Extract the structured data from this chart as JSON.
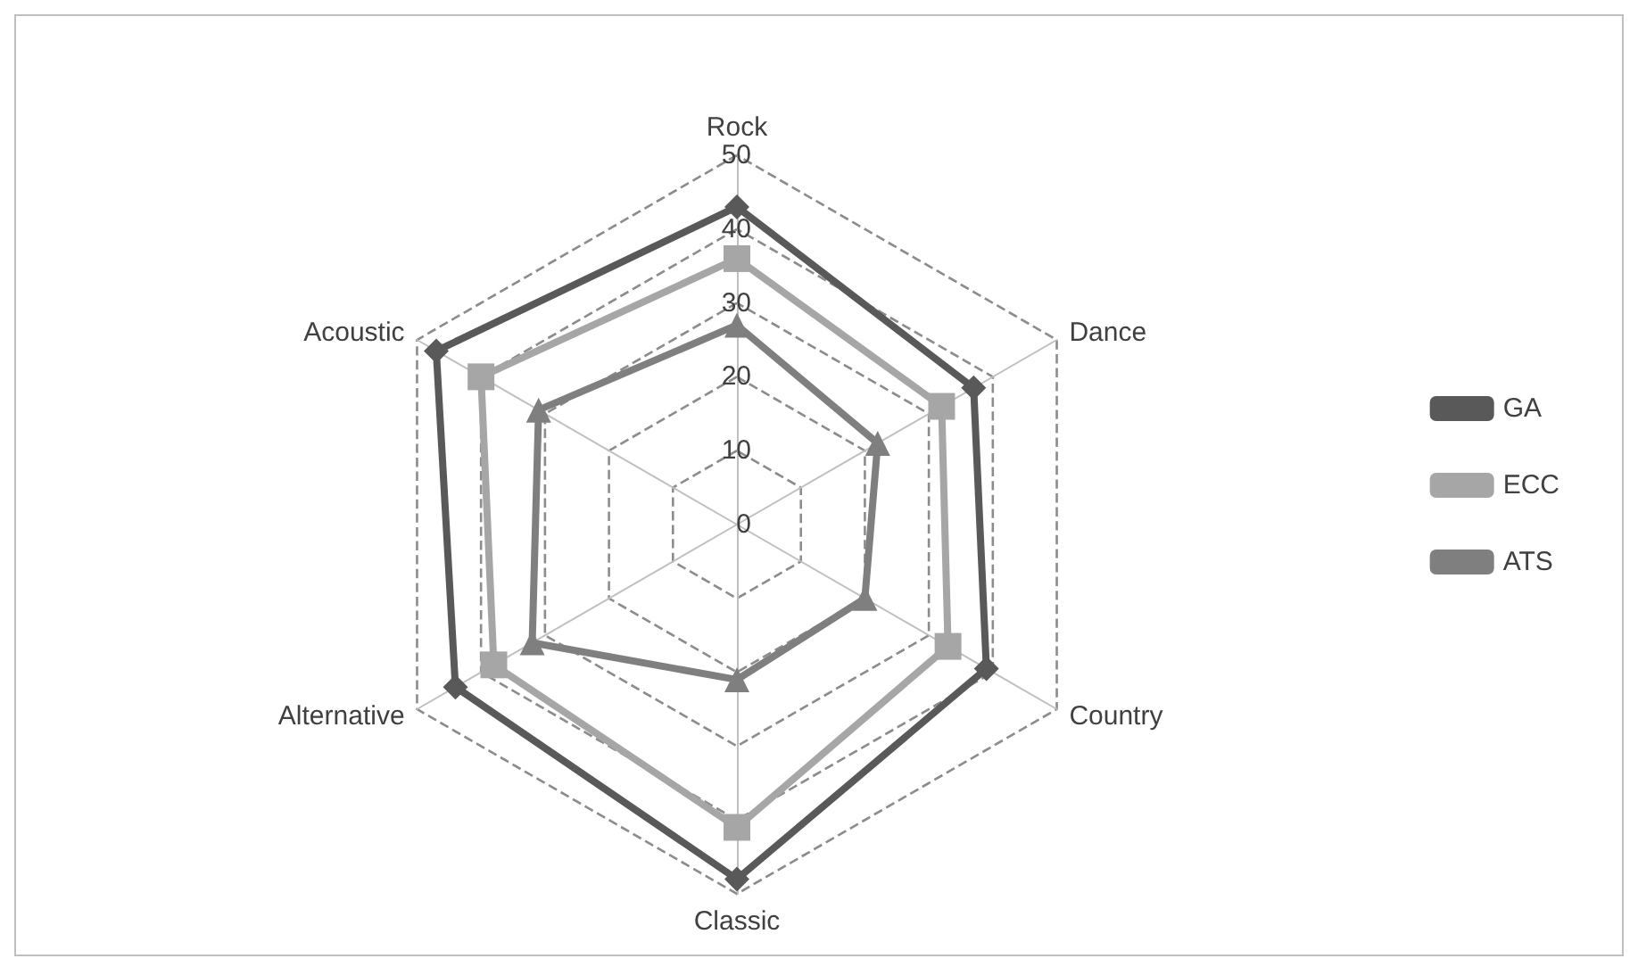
{
  "chart_data": {
    "type": "radar",
    "categories": [
      "Rock",
      "Dance",
      "Country",
      "Classic",
      "Alternative",
      "Acoustic"
    ],
    "ylim": [
      0,
      50
    ],
    "yticks": [
      0,
      10,
      20,
      30,
      40,
      50
    ],
    "grid": true,
    "legend": "right",
    "series": [
      {
        "name": "GA",
        "color": "#595959",
        "marker": "diamond",
        "values": [
          43,
          37,
          39,
          48,
          44,
          47
        ]
      },
      {
        "name": "ECC",
        "color": "#a6a6a6",
        "marker": "square",
        "values": [
          36,
          32,
          33,
          41,
          38,
          40
        ]
      },
      {
        "name": "ATS",
        "color": "#7f7f7f",
        "marker": "triangle",
        "values": [
          27,
          22,
          20,
          21,
          32,
          31
        ]
      }
    ]
  }
}
